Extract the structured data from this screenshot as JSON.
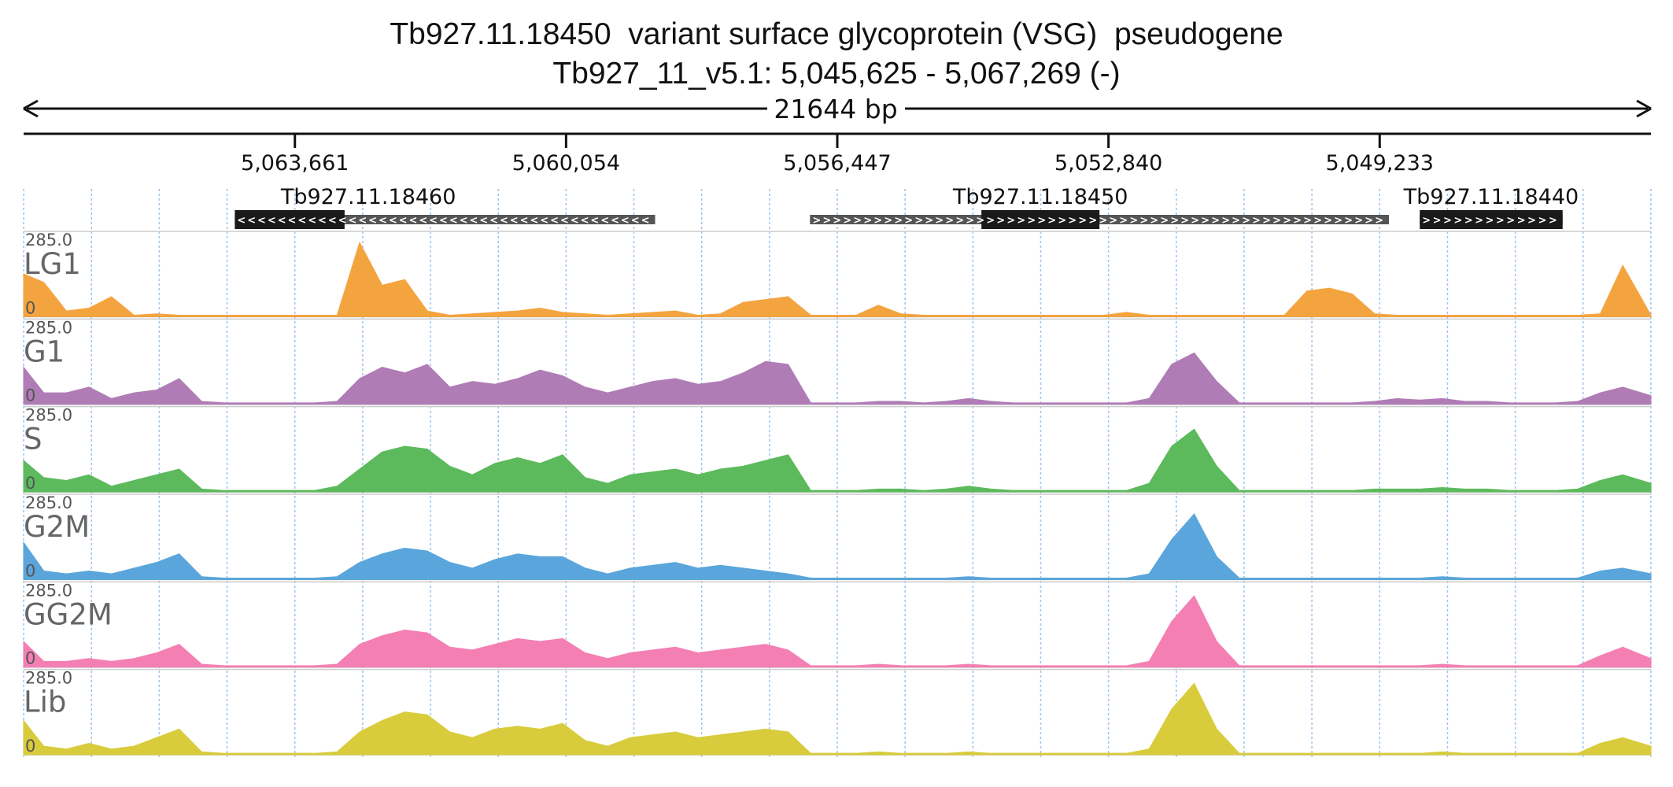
{
  "title": "Tb927.11.18450  variant surface glycoprotein (VSG)  pseudogene",
  "subtitle": "Tb927_11_v5.1: 5,045,625 - 5,067,269 (-)",
  "colors": {
    "LG1": "#f4a43f",
    "G1": "#b07cb6",
    "S": "#5cba5c",
    "G2M": "#5aa6dc",
    "GG2M": "#f47fb3",
    "Lib": "#d8cc3c",
    "gene_box": "#1a1a1a",
    "gene_line": "#555555",
    "grid": "#9cc4ee"
  },
  "chart_data": {
    "type": "area",
    "title": "Tb927.11.18450  variant surface glycoprotein (VSG)  pseudogene",
    "subtitle": "Tb927_11_v5.1: 5,045,625 - 5,067,269 (-)",
    "span_label": "21644 bp",
    "strand": "-",
    "region": {
      "start": 5045625,
      "end": 5067269
    },
    "ticks": [
      {
        "pos": 5063661,
        "label": "5,063,661"
      },
      {
        "pos": 5060054,
        "label": "5,060,054"
      },
      {
        "pos": 5056447,
        "label": "5,056,447"
      },
      {
        "pos": 5052840,
        "label": "5,052,840"
      },
      {
        "pos": 5049233,
        "label": "5,049,233"
      }
    ],
    "grid": true,
    "genes": [
      {
        "name": "Tb927.11.18460",
        "strand": "-",
        "start": 5058870,
        "end": 5064460,
        "cds_start": 5063000,
        "cds_end": 5064460
      },
      {
        "name": "Tb927.11.18450",
        "strand": "+",
        "start": 5049110,
        "end": 5056810,
        "cds_start": 5052960,
        "cds_end": 5054530
      },
      {
        "name": "Tb927.11.18440",
        "strand": "+",
        "start": 5046800,
        "end": 5048700,
        "cds_start": 5046800,
        "cds_end": 5048700
      }
    ],
    "tracks_ylim": [
      0,
      285
    ],
    "y_top_label": "285.0",
    "y_bottom_label": "0",
    "x": [
      5067269,
      5067000,
      5066700,
      5066400,
      5066100,
      5065800,
      5065500,
      5065200,
      5064900,
      5064600,
      5064300,
      5064000,
      5063700,
      5063400,
      5063100,
      5062800,
      5062500,
      5062200,
      5061900,
      5061600,
      5061300,
      5061000,
      5060700,
      5060400,
      5060100,
      5059800,
      5059500,
      5059200,
      5058900,
      5058600,
      5058300,
      5058000,
      5057700,
      5057400,
      5057100,
      5056800,
      5056500,
      5056200,
      5055900,
      5055600,
      5055300,
      5055000,
      5054700,
      5054400,
      5054100,
      5053800,
      5053500,
      5053200,
      5052900,
      5052600,
      5052300,
      5052000,
      5051700,
      5051400,
      5051100,
      5050800,
      5050500,
      5050200,
      5049900,
      5049600,
      5049300,
      5049000,
      5048700,
      5048400,
      5048100,
      5047800,
      5047500,
      5047200,
      5046900,
      5046600,
      5046300,
      5046000,
      5045625
    ],
    "series": [
      {
        "name": "LG1",
        "values": [
          150,
          120,
          20,
          30,
          70,
          5,
          10,
          5,
          5,
          5,
          5,
          5,
          5,
          5,
          5,
          260,
          110,
          130,
          20,
          5,
          10,
          15,
          20,
          30,
          15,
          10,
          5,
          10,
          15,
          20,
          5,
          10,
          50,
          60,
          70,
          5,
          5,
          5,
          40,
          10,
          5,
          5,
          5,
          5,
          5,
          5,
          5,
          5,
          5,
          15,
          5,
          5,
          5,
          5,
          5,
          5,
          5,
          90,
          100,
          80,
          10,
          5,
          5,
          5,
          5,
          5,
          5,
          5,
          5,
          5,
          10,
          180,
          5
        ]
      },
      {
        "name": "G1",
        "values": [
          130,
          40,
          40,
          60,
          20,
          40,
          50,
          90,
          10,
          5,
          5,
          5,
          5,
          5,
          10,
          90,
          130,
          110,
          140,
          60,
          80,
          70,
          90,
          120,
          100,
          60,
          40,
          60,
          80,
          90,
          70,
          80,
          110,
          150,
          140,
          5,
          5,
          5,
          10,
          10,
          5,
          10,
          20,
          10,
          5,
          5,
          5,
          5,
          5,
          5,
          20,
          140,
          180,
          80,
          5,
          5,
          5,
          5,
          5,
          5,
          10,
          20,
          15,
          20,
          10,
          10,
          5,
          5,
          5,
          10,
          40,
          60,
          30
        ]
      },
      {
        "name": "S",
        "values": [
          110,
          50,
          40,
          60,
          20,
          40,
          60,
          80,
          10,
          5,
          5,
          5,
          5,
          5,
          20,
          80,
          140,
          160,
          150,
          90,
          60,
          100,
          120,
          100,
          130,
          50,
          30,
          60,
          70,
          80,
          60,
          80,
          90,
          110,
          130,
          5,
          5,
          5,
          10,
          10,
          5,
          10,
          20,
          10,
          5,
          5,
          5,
          5,
          5,
          5,
          30,
          160,
          220,
          90,
          5,
          5,
          5,
          5,
          5,
          5,
          10,
          10,
          10,
          15,
          10,
          10,
          5,
          5,
          5,
          10,
          40,
          60,
          30
        ]
      },
      {
        "name": "G2M",
        "values": [
          130,
          30,
          20,
          30,
          20,
          40,
          60,
          90,
          10,
          5,
          5,
          5,
          5,
          5,
          10,
          60,
          90,
          110,
          100,
          60,
          40,
          70,
          90,
          80,
          80,
          40,
          20,
          40,
          50,
          60,
          40,
          50,
          40,
          30,
          20,
          5,
          5,
          5,
          5,
          5,
          5,
          5,
          10,
          5,
          5,
          5,
          5,
          5,
          5,
          5,
          20,
          140,
          230,
          80,
          5,
          5,
          5,
          5,
          5,
          5,
          5,
          5,
          5,
          10,
          5,
          5,
          5,
          5,
          5,
          5,
          30,
          40,
          20
        ]
      },
      {
        "name": "GG2M",
        "values": [
          90,
          20,
          20,
          30,
          20,
          30,
          50,
          80,
          10,
          5,
          5,
          5,
          5,
          5,
          10,
          80,
          110,
          130,
          120,
          70,
          60,
          80,
          100,
          90,
          100,
          50,
          30,
          50,
          60,
          70,
          50,
          60,
          70,
          80,
          60,
          5,
          5,
          5,
          10,
          5,
          5,
          5,
          10,
          5,
          5,
          5,
          5,
          5,
          5,
          5,
          20,
          160,
          250,
          90,
          5,
          5,
          5,
          5,
          5,
          5,
          5,
          5,
          5,
          10,
          5,
          5,
          5,
          5,
          5,
          5,
          40,
          70,
          30
        ]
      },
      {
        "name": "Lib",
        "values": [
          120,
          30,
          20,
          40,
          20,
          30,
          60,
          90,
          10,
          5,
          5,
          5,
          5,
          5,
          10,
          80,
          120,
          150,
          140,
          80,
          60,
          90,
          100,
          90,
          110,
          50,
          30,
          60,
          70,
          80,
          60,
          70,
          80,
          90,
          80,
          5,
          5,
          5,
          10,
          5,
          5,
          5,
          10,
          5,
          5,
          5,
          5,
          5,
          5,
          5,
          20,
          160,
          250,
          90,
          5,
          5,
          5,
          5,
          5,
          5,
          5,
          5,
          5,
          10,
          5,
          5,
          5,
          5,
          5,
          5,
          40,
          60,
          30
        ]
      }
    ]
  }
}
